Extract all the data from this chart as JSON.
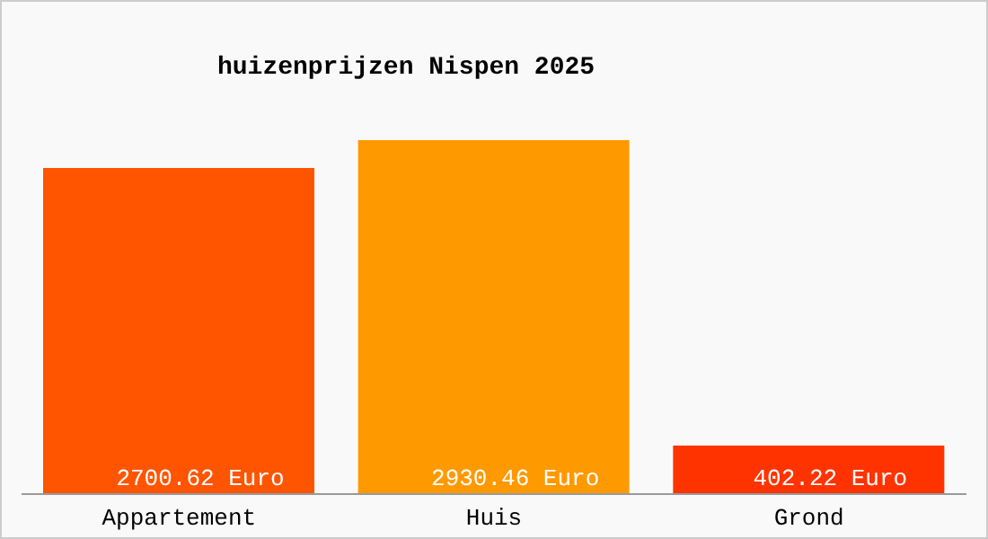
{
  "chart_data": {
    "type": "bar",
    "title": "huizenprijzen Nispen 2025",
    "categories": [
      "Appartement",
      "Huis",
      "Grond"
    ],
    "values": [
      2700.62,
      2930.46,
      402.22
    ],
    "colors": [
      "#ff5500",
      "#ff9900",
      "#ff3300"
    ],
    "value_labels": [
      "2700.62 Euro",
      "2930.46 Euro",
      "402.22 Euro"
    ],
    "grid": false,
    "legend": false
  }
}
